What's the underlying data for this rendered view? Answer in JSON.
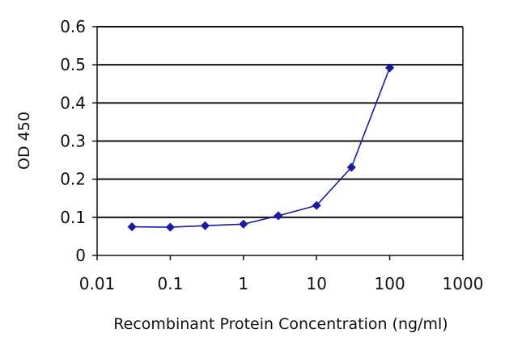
{
  "chart_data": {
    "type": "line",
    "title": "",
    "xlabel": "Recombinant Protein Concentration (ng/ml)",
    "ylabel": "OD 450",
    "xscale": "log",
    "xlim": [
      0.01,
      1000
    ],
    "ylim": [
      0,
      0.6
    ],
    "x_tick_labels": [
      "0.01",
      "0.1",
      "1",
      "10",
      "100",
      "1000"
    ],
    "x_tick_values": [
      0.01,
      0.1,
      1,
      10,
      100,
      1000
    ],
    "y_tick_labels": [
      "0",
      "0.1",
      "0.2",
      "0.3",
      "0.4",
      "0.5",
      "0.6"
    ],
    "y_tick_values": [
      0,
      0.1,
      0.2,
      0.3,
      0.4,
      0.5,
      0.6
    ],
    "grid": "horizontal",
    "legend": "none",
    "series": [
      {
        "x": [
          0.03,
          0.1,
          0.3,
          1,
          3,
          10,
          30,
          100
        ],
        "y": [
          0.075,
          0.074,
          0.078,
          0.082,
          0.104,
          0.131,
          0.231,
          0.492
        ],
        "color": "#1a1aa0",
        "marker": "diamond"
      }
    ]
  }
}
